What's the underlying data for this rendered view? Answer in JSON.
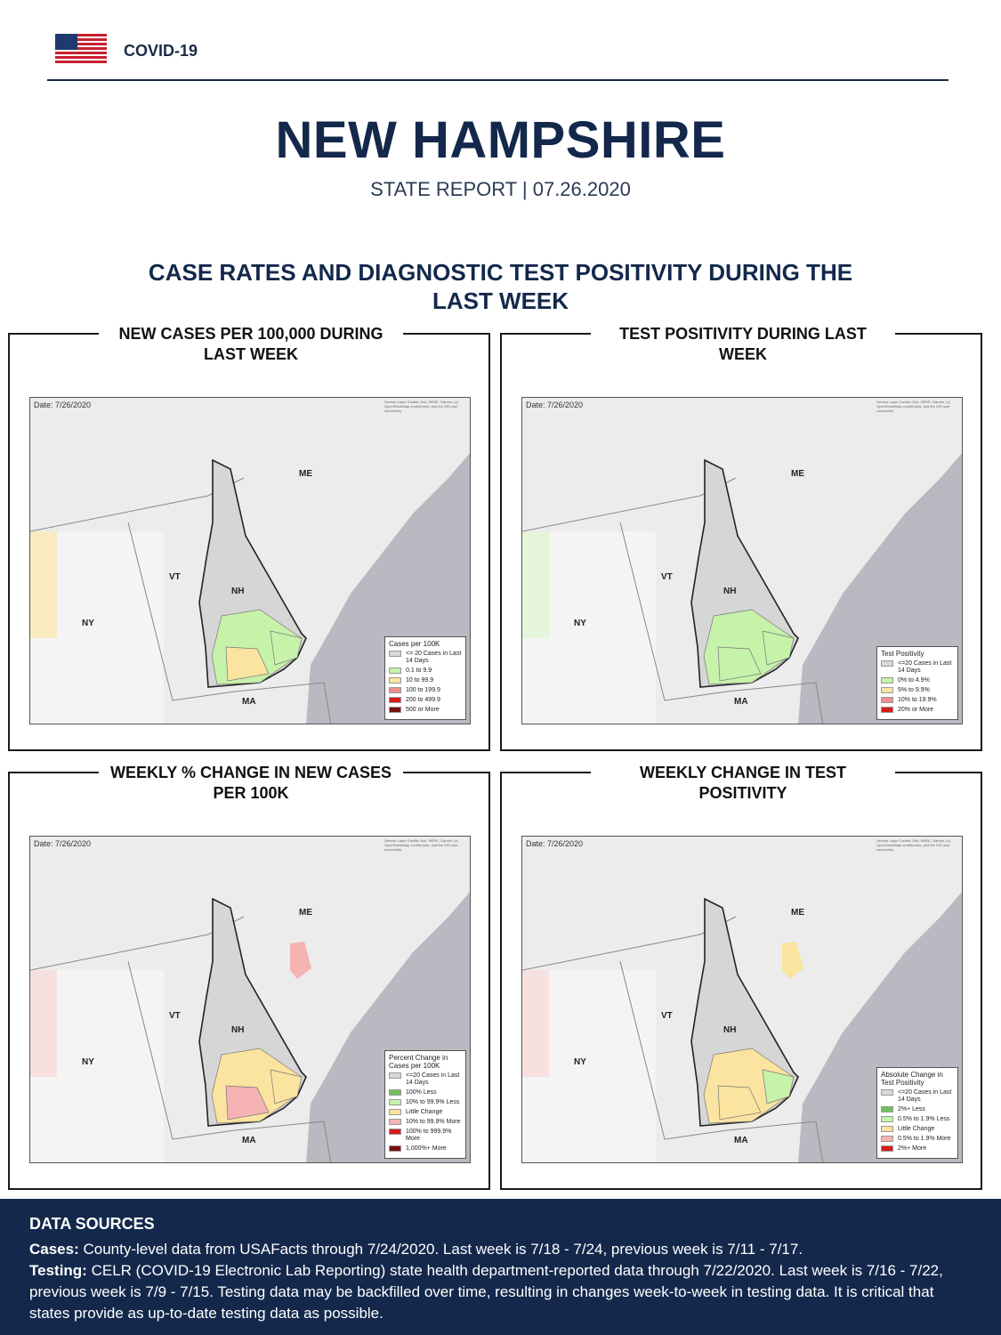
{
  "header": {
    "brand": "COVID-19"
  },
  "title": "NEW HAMPSHIRE",
  "subtitle": "STATE REPORT | 07.26.2020",
  "section_title": "CASE RATES AND DIAGNOSTIC TEST POSITIVITY DURING THE LAST WEEK",
  "map_date": "Date: 7/26/2020",
  "map_credit": "Service Layer Credits: Esri, HERE, Garmin, (c) OpenStreetMap contributors, and the GIS user community",
  "state_labels": {
    "me": "ME",
    "vt": "VT",
    "nh": "NH",
    "ny": "NY",
    "ma": "MA"
  },
  "panels": [
    {
      "title": "NEW CASES PER 100,000 DURING LAST WEEK",
      "legend_title": "Cases per 100K",
      "legend": [
        {
          "label": "<= 20 Cases in Last 14 Days",
          "color": "#d8d8d8"
        },
        {
          "label": "0.1 to 9.9",
          "color": "#c6f2a9"
        },
        {
          "label": "10 to 99.9",
          "color": "#fbe3a0"
        },
        {
          "label": "100 to 199.9",
          "color": "#f18e8e"
        },
        {
          "label": "200 to 499.9",
          "color": "#d91a1a"
        },
        {
          "label": "500 or More",
          "color": "#7a0f0f"
        }
      ]
    },
    {
      "title": "TEST POSITIVITY DURING LAST WEEK",
      "legend_title": "Test Positivity",
      "legend": [
        {
          "label": "<=20 Cases in Last 14 Days",
          "color": "#d8d8d8"
        },
        {
          "label": "0% to 4.9%",
          "color": "#c6f2a9"
        },
        {
          "label": "5% to 9.9%",
          "color": "#fbe3a0"
        },
        {
          "label": "10% to 19.9%",
          "color": "#f18e8e"
        },
        {
          "label": "20% or More",
          "color": "#d91a1a"
        }
      ]
    },
    {
      "title": "WEEKLY % CHANGE IN NEW CASES PER 100K",
      "legend_title": "Percent Change in Cases per 100K",
      "legend": [
        {
          "label": "<=20 Cases in Last 14 Days",
          "color": "#d8d8d8"
        },
        {
          "label": "100% Less",
          "color": "#6fc25a"
        },
        {
          "label": "10% to 99.9% Less",
          "color": "#c6f2a9"
        },
        {
          "label": "Little Change",
          "color": "#fbe3a0"
        },
        {
          "label": "10% to 99.9% More",
          "color": "#f5b3b3"
        },
        {
          "label": "100% to 999.9% More",
          "color": "#d91a1a"
        },
        {
          "label": "1,000%+ More",
          "color": "#7a0f0f"
        }
      ]
    },
    {
      "title": "WEEKLY CHANGE IN TEST POSITIVITY",
      "legend_title": "Absolute Change in Test Positivity",
      "legend": [
        {
          "label": "<=20 Cases in Last 14 Days",
          "color": "#d8d8d8"
        },
        {
          "label": "2%+ Less",
          "color": "#6fc25a"
        },
        {
          "label": "0.5% to 1.9% Less",
          "color": "#c6f2a9"
        },
        {
          "label": "Little Change",
          "color": "#fbe3a0"
        },
        {
          "label": "0.5% to 1.9% More",
          "color": "#f5b3b3"
        },
        {
          "label": "2%+ More",
          "color": "#d91a1a"
        }
      ]
    }
  ],
  "footer": {
    "heading": "DATA SOURCES",
    "cases_label": "Cases:",
    "cases_text": " County-level data from USAFacts through 7/24/2020. Last week is 7/18 - 7/24, previous week is 7/11 - 7/17.",
    "testing_label": "Testing:",
    "testing_text": " CELR (COVID-19 Electronic Lab Reporting) state health department-reported data through 7/22/2020. Last week is 7/16 - 7/22, previous week is 7/9 - 7/15. Testing data may be backfilled over time, resulting in changes week-to-week in testing data. It is critical that states provide as up-to-date testing data as possible."
  }
}
